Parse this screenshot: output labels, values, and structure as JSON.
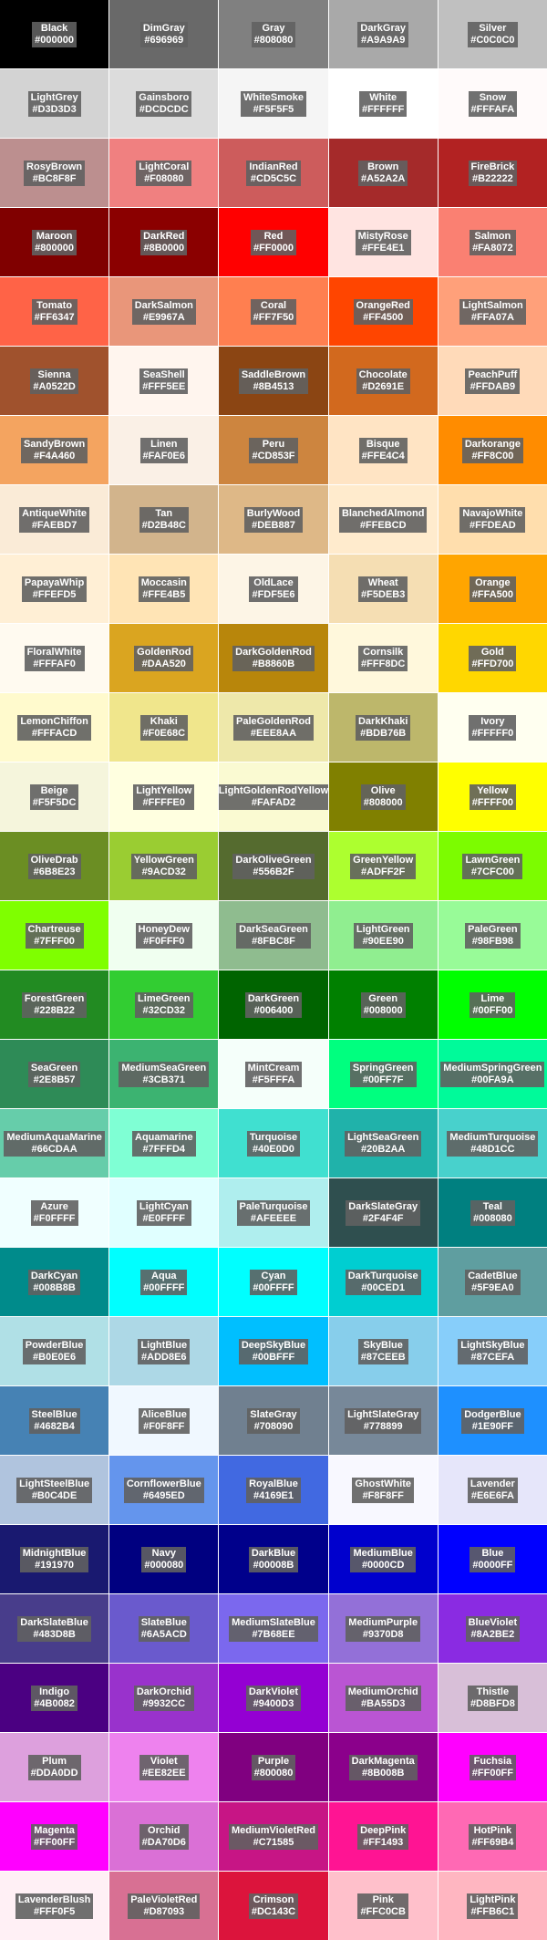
{
  "swatches": [
    {
      "name": "Black",
      "hex": "#000000"
    },
    {
      "name": "DimGray",
      "hex": "#696969"
    },
    {
      "name": "Gray",
      "hex": "#808080"
    },
    {
      "name": "DarkGray",
      "hex": "#A9A9A9"
    },
    {
      "name": "Silver",
      "hex": "#C0C0C0"
    },
    {
      "name": "LightGrey",
      "hex": "#D3D3D3"
    },
    {
      "name": "Gainsboro",
      "hex": "#DCDCDC"
    },
    {
      "name": "WhiteSmoke",
      "hex": "#F5F5F5"
    },
    {
      "name": "White",
      "hex": "#FFFFFF"
    },
    {
      "name": "Snow",
      "hex": "#FFFAFA"
    },
    {
      "name": "RosyBrown",
      "hex": "#BC8F8F"
    },
    {
      "name": "LightCoral",
      "hex": "#F08080"
    },
    {
      "name": "IndianRed",
      "hex": "#CD5C5C"
    },
    {
      "name": "Brown",
      "hex": "#A52A2A"
    },
    {
      "name": "FireBrick",
      "hex": "#B22222"
    },
    {
      "name": "Maroon",
      "hex": "#800000"
    },
    {
      "name": "DarkRed",
      "hex": "#8B0000"
    },
    {
      "name": "Red",
      "hex": "#FF0000"
    },
    {
      "name": "MistyRose",
      "hex": "#FFE4E1"
    },
    {
      "name": "Salmon",
      "hex": "#FA8072"
    },
    {
      "name": "Tomato",
      "hex": "#FF6347"
    },
    {
      "name": "DarkSalmon",
      "hex": "#E9967A"
    },
    {
      "name": "Coral",
      "hex": "#FF7F50"
    },
    {
      "name": "OrangeRed",
      "hex": "#FF4500"
    },
    {
      "name": "LightSalmon",
      "hex": "#FFA07A"
    },
    {
      "name": "Sienna",
      "hex": "#A0522D"
    },
    {
      "name": "SeaShell",
      "hex": "#FFF5EE"
    },
    {
      "name": "SaddleBrown",
      "hex": "#8B4513"
    },
    {
      "name": "Chocolate",
      "hex": "#D2691E"
    },
    {
      "name": "PeachPuff",
      "hex": "#FFDAB9"
    },
    {
      "name": "SandyBrown",
      "hex": "#F4A460"
    },
    {
      "name": "Linen",
      "hex": "#FAF0E6"
    },
    {
      "name": "Peru",
      "hex": "#CD853F"
    },
    {
      "name": "Bisque",
      "hex": "#FFE4C4"
    },
    {
      "name": "Darkorange",
      "hex": "#FF8C00"
    },
    {
      "name": "AntiqueWhite",
      "hex": "#FAEBD7"
    },
    {
      "name": "Tan",
      "hex": "#D2B48C"
    },
    {
      "name": "BurlyWood",
      "hex": "#DEB887"
    },
    {
      "name": "BlanchedAlmond",
      "hex": "#FFEBCD"
    },
    {
      "name": "NavajoWhite",
      "hex": "#FFDEAD"
    },
    {
      "name": "PapayaWhip",
      "hex": "#FFEFD5"
    },
    {
      "name": "Moccasin",
      "hex": "#FFE4B5"
    },
    {
      "name": "OldLace",
      "hex": "#FDF5E6"
    },
    {
      "name": "Wheat",
      "hex": "#F5DEB3"
    },
    {
      "name": "Orange",
      "hex": "#FFA500"
    },
    {
      "name": "FloralWhite",
      "hex": "#FFFAF0"
    },
    {
      "name": "GoldenRod",
      "hex": "#DAA520"
    },
    {
      "name": "DarkGoldenRod",
      "hex": "#B8860B"
    },
    {
      "name": "Cornsilk",
      "hex": "#FFF8DC"
    },
    {
      "name": "Gold",
      "hex": "#FFD700"
    },
    {
      "name": "LemonChiffon",
      "hex": "#FFFACD"
    },
    {
      "name": "Khaki",
      "hex": "#F0E68C"
    },
    {
      "name": "PaleGoldenRod",
      "hex": "#EEE8AA"
    },
    {
      "name": "DarkKhaki",
      "hex": "#BDB76B"
    },
    {
      "name": "Ivory",
      "hex": "#FFFFF0"
    },
    {
      "name": "Beige",
      "hex": "#F5F5DC"
    },
    {
      "name": "LightYellow",
      "hex": "#FFFFE0"
    },
    {
      "name": "LightGoldenRodYellow",
      "hex": "#FAFAD2"
    },
    {
      "name": "Olive",
      "hex": "#808000"
    },
    {
      "name": "Yellow",
      "hex": "#FFFF00"
    },
    {
      "name": "OliveDrab",
      "hex": "#6B8E23"
    },
    {
      "name": "YellowGreen",
      "hex": "#9ACD32"
    },
    {
      "name": "DarkOliveGreen",
      "hex": "#556B2F"
    },
    {
      "name": "GreenYellow",
      "hex": "#ADFF2F"
    },
    {
      "name": "LawnGreen",
      "hex": "#7CFC00"
    },
    {
      "name": "Chartreuse",
      "hex": "#7FFF00"
    },
    {
      "name": "HoneyDew",
      "hex": "#F0FFF0"
    },
    {
      "name": "DarkSeaGreen",
      "hex": "#8FBC8F"
    },
    {
      "name": "LightGreen",
      "hex": "#90EE90"
    },
    {
      "name": "PaleGreen",
      "hex": "#98FB98"
    },
    {
      "name": "ForestGreen",
      "hex": "#228B22"
    },
    {
      "name": "LimeGreen",
      "hex": "#32CD32"
    },
    {
      "name": "DarkGreen",
      "hex": "#006400"
    },
    {
      "name": "Green",
      "hex": "#008000"
    },
    {
      "name": "Lime",
      "hex": "#00FF00"
    },
    {
      "name": "SeaGreen",
      "hex": "#2E8B57"
    },
    {
      "name": "MediumSeaGreen",
      "hex": "#3CB371"
    },
    {
      "name": "MintCream",
      "hex": "#F5FFFA"
    },
    {
      "name": "SpringGreen",
      "hex": "#00FF7F"
    },
    {
      "name": "MediumSpringGreen",
      "hex": "#00FA9A"
    },
    {
      "name": "MediumAquaMarine",
      "hex": "#66CDAA"
    },
    {
      "name": "Aquamarine",
      "hex": "#7FFFD4"
    },
    {
      "name": "Turquoise",
      "hex": "#40E0D0"
    },
    {
      "name": "LightSeaGreen",
      "hex": "#20B2AA"
    },
    {
      "name": "MediumTurquoise",
      "hex": "#48D1CC"
    },
    {
      "name": "Azure",
      "hex": "#F0FFFF"
    },
    {
      "name": "LightCyan",
      "hex": "#E0FFFF"
    },
    {
      "name": "PaleTurquoise",
      "hex": "#AFEEEE"
    },
    {
      "name": "DarkSlateGray",
      "hex": "#2F4F4F"
    },
    {
      "name": "Teal",
      "hex": "#008080"
    },
    {
      "name": "DarkCyan",
      "hex": "#008B8B"
    },
    {
      "name": "Aqua",
      "hex": "#00FFFF"
    },
    {
      "name": "Cyan",
      "hex": "#00FFFF"
    },
    {
      "name": "DarkTurquoise",
      "hex": "#00CED1"
    },
    {
      "name": "CadetBlue",
      "hex": "#5F9EA0"
    },
    {
      "name": "PowderBlue",
      "hex": "#B0E0E6"
    },
    {
      "name": "LightBlue",
      "hex": "#ADD8E6"
    },
    {
      "name": "DeepSkyBlue",
      "hex": "#00BFFF"
    },
    {
      "name": "SkyBlue",
      "hex": "#87CEEB"
    },
    {
      "name": "LightSkyBlue",
      "hex": "#87CEFA"
    },
    {
      "name": "SteelBlue",
      "hex": "#4682B4"
    },
    {
      "name": "AliceBlue",
      "hex": "#F0F8FF"
    },
    {
      "name": "SlateGray",
      "hex": "#708090"
    },
    {
      "name": "LightSlateGray",
      "hex": "#778899"
    },
    {
      "name": "DodgerBlue",
      "hex": "#1E90FF"
    },
    {
      "name": "LightSteelBlue",
      "hex": "#B0C4DE"
    },
    {
      "name": "CornflowerBlue",
      "hex": "#6495ED"
    },
    {
      "name": "RoyalBlue",
      "hex": "#4169E1"
    },
    {
      "name": "GhostWhite",
      "hex": "#F8F8FF"
    },
    {
      "name": "Lavender",
      "hex": "#E6E6FA"
    },
    {
      "name": "MidnightBlue",
      "hex": "#191970"
    },
    {
      "name": "Navy",
      "hex": "#000080"
    },
    {
      "name": "DarkBlue",
      "hex": "#00008B"
    },
    {
      "name": "MediumBlue",
      "hex": "#0000CD"
    },
    {
      "name": "Blue",
      "hex": "#0000FF"
    },
    {
      "name": "DarkSlateBlue",
      "hex": "#483D8B"
    },
    {
      "name": "SlateBlue",
      "hex": "#6A5ACD"
    },
    {
      "name": "MediumSlateBlue",
      "hex": "#7B68EE"
    },
    {
      "name": "MediumPurple",
      "hex": "#9370D8"
    },
    {
      "name": "BlueViolet",
      "hex": "#8A2BE2"
    },
    {
      "name": "Indigo",
      "hex": "#4B0082"
    },
    {
      "name": "DarkOrchid",
      "hex": "#9932CC"
    },
    {
      "name": "DarkViolet",
      "hex": "#9400D3"
    },
    {
      "name": "MediumOrchid",
      "hex": "#BA55D3"
    },
    {
      "name": "Thistle",
      "hex": "#D8BFD8"
    },
    {
      "name": "Plum",
      "hex": "#DDA0DD"
    },
    {
      "name": "Violet",
      "hex": "#EE82EE"
    },
    {
      "name": "Purple",
      "hex": "#800080"
    },
    {
      "name": "DarkMagenta",
      "hex": "#8B008B"
    },
    {
      "name": "Fuchsia",
      "hex": "#FF00FF"
    },
    {
      "name": "Magenta",
      "hex": "#FF00FF"
    },
    {
      "name": "Orchid",
      "hex": "#DA70D6"
    },
    {
      "name": "MediumVioletRed",
      "hex": "#C71585"
    },
    {
      "name": "DeepPink",
      "hex": "#FF1493"
    },
    {
      "name": "HotPink",
      "hex": "#FF69B4"
    },
    {
      "name": "LavenderBlush",
      "hex": "#FFF0F5"
    },
    {
      "name": "PaleVioletRed",
      "hex": "#D87093"
    },
    {
      "name": "Crimson",
      "hex": "#DC143C"
    },
    {
      "name": "Pink",
      "hex": "#FFC0CB"
    },
    {
      "name": "LightPink",
      "hex": "#FFB6C1"
    }
  ]
}
